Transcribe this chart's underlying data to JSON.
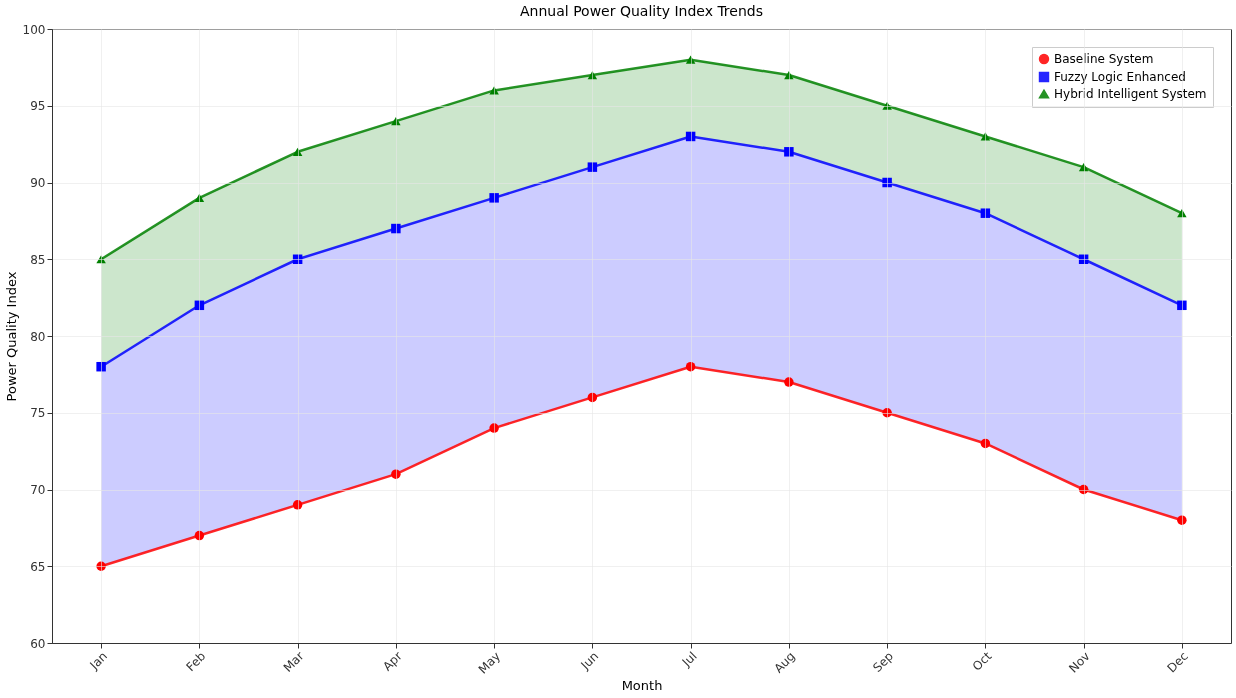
{
  "chart_data": {
    "type": "line",
    "title": "Annual Power Quality Index Trends",
    "xlabel": "Month",
    "ylabel": "Power Quality Index",
    "categories": [
      "Jan",
      "Feb",
      "Mar",
      "Apr",
      "May",
      "Jun",
      "Jul",
      "Aug",
      "Sep",
      "Oct",
      "Nov",
      "Dec"
    ],
    "series": [
      {
        "name": "Baseline System",
        "color": "#ff0000",
        "marker": "circle",
        "values": [
          65,
          67,
          69,
          71,
          74,
          76,
          78,
          77,
          75,
          73,
          70,
          68
        ]
      },
      {
        "name": "Fuzzy Logic Enhanced",
        "color": "#0000ff",
        "marker": "square",
        "values": [
          78,
          82,
          85,
          87,
          89,
          91,
          93,
          92,
          90,
          88,
          85,
          82
        ],
        "lower": [
          65,
          67,
          69,
          71,
          74,
          76,
          78,
          77,
          75,
          73,
          70,
          68
        ],
        "upper": [
          78,
          82,
          85,
          87,
          89,
          91,
          93,
          92,
          90,
          88,
          85,
          82
        ]
      },
      {
        "name": "Hybrid Intelligent System",
        "color": "#008000",
        "marker": "triangle",
        "values": [
          85,
          89,
          92,
          94,
          96,
          97,
          98,
          97,
          95,
          93,
          91,
          88
        ],
        "lower": [
          78,
          82,
          85,
          87,
          89,
          91,
          93,
          92,
          90,
          88,
          85,
          82
        ],
        "upper": [
          85,
          89,
          92,
          94,
          96,
          97,
          98,
          97,
          95,
          93,
          91,
          88
        ]
      }
    ],
    "ylim": [
      60,
      100
    ],
    "yticks": [
      60,
      65,
      70,
      75,
      80,
      85,
      90,
      95,
      100
    ],
    "grid": true,
    "legend": "top right",
    "line_style": "solid"
  }
}
